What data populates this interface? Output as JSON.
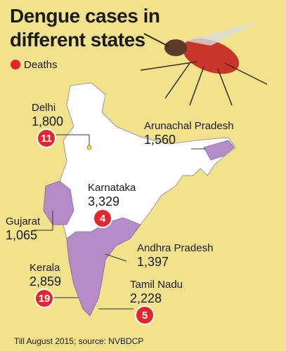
{
  "title_lines": [
    "Dengue cases in",
    "different states"
  ],
  "legend": "Deaths",
  "states": [
    {
      "name": "Delhi",
      "cases": "1,800",
      "deaths": 11
    },
    {
      "name": "Arunachal Pradesh",
      "cases": "1,560"
    },
    {
      "name": "Karnataka",
      "cases": "3,329",
      "deaths": 4
    },
    {
      "name": "Gujarat",
      "cases": "1,065"
    },
    {
      "name": "Andhra Pradesh",
      "cases": "1,397"
    },
    {
      "name": "Kerala",
      "cases": "2,859",
      "deaths": 19
    },
    {
      "name": "Tamil Nadu",
      "cases": "2,228",
      "deaths": 5
    }
  ],
  "footnote": "Till August 2015; source: NVBDCP"
}
